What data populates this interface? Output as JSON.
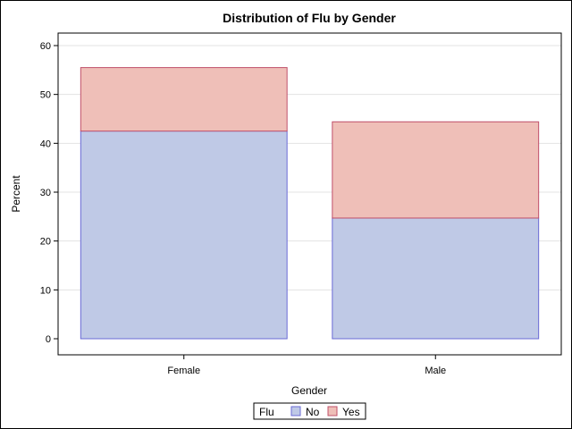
{
  "chart_data": {
    "type": "bar",
    "stacked": true,
    "title": "Distribution of Flu by Gender",
    "xlabel": "Gender",
    "ylabel": "Percent",
    "categories": [
      "Female",
      "Male"
    ],
    "series": [
      {
        "name": "No",
        "values": [
          42.5,
          24.7
        ],
        "color": "#bfc9e6",
        "edge": "#6b6bd6"
      },
      {
        "name": "Yes",
        "values": [
          13.0,
          19.7
        ],
        "color": "#efbfb8",
        "edge": "#c0506a"
      }
    ],
    "ylim": [
      0,
      63
    ],
    "yticks": [
      0,
      10,
      20,
      30,
      40,
      50,
      60
    ],
    "grid": true,
    "legend": {
      "title": "Flu",
      "position": "bottom-center"
    }
  }
}
